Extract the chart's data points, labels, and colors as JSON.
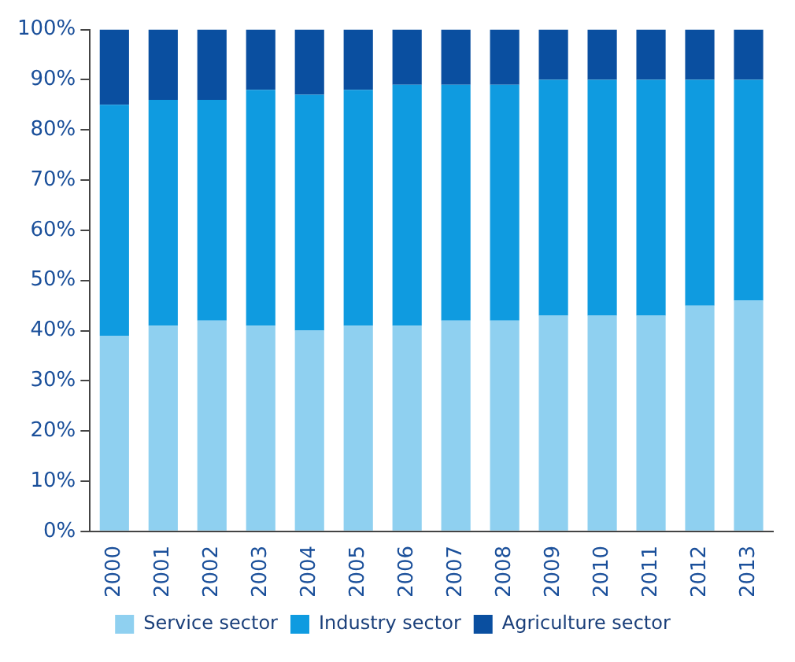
{
  "chart_data": {
    "type": "bar",
    "stacked": true,
    "categories": [
      "2000",
      "2001",
      "2002",
      "2003",
      "2004",
      "2005",
      "2006",
      "2007",
      "2008",
      "2009",
      "2010",
      "2011",
      "2012",
      "2013"
    ],
    "series": [
      {
        "name": "Service sector",
        "color": "#8fd0f0",
        "values": [
          39,
          41,
          42,
          41,
          40,
          41,
          41,
          42,
          42,
          43,
          43,
          43,
          45,
          46
        ]
      },
      {
        "name": "Industry sector",
        "color": "#0f9be0",
        "values": [
          46,
          45,
          44,
          47,
          47,
          47,
          48,
          47,
          47,
          47,
          47,
          47,
          45,
          44
        ]
      },
      {
        "name": "Agriculture sector",
        "color": "#0a4fa0",
        "values": [
          15,
          14,
          14,
          12,
          13,
          12,
          11,
          11,
          11,
          10,
          10,
          10,
          10,
          10
        ]
      }
    ],
    "ylim": [
      0,
      100
    ],
    "yticks": [
      {
        "value": 0,
        "label": "0%"
      },
      {
        "value": 10,
        "label": "10%"
      },
      {
        "value": 20,
        "label": "20%"
      },
      {
        "value": 30,
        "label": "30%"
      },
      {
        "value": 40,
        "label": "40%"
      },
      {
        "value": 50,
        "label": "50%"
      },
      {
        "value": 60,
        "label": "60%"
      },
      {
        "value": 70,
        "label": "70%"
      },
      {
        "value": 80,
        "label": "80%"
      },
      {
        "value": 90,
        "label": "90%"
      },
      {
        "value": 100,
        "label": "100%"
      }
    ],
    "grid": false,
    "legend": "bottom"
  }
}
